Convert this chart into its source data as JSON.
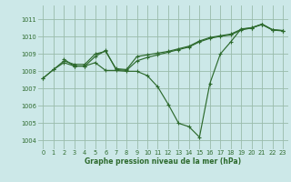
{
  "title": "Graphe pression niveau de la mer (hPa)",
  "bg_color": "#cce8e8",
  "grid_color": "#99bbaa",
  "line_color": "#2d6a2d",
  "xlim": [
    -0.5,
    23.5
  ],
  "ylim": [
    1003.5,
    1011.8
  ],
  "yticks": [
    1004,
    1005,
    1006,
    1007,
    1008,
    1009,
    1010,
    1011
  ],
  "xticks": [
    0,
    1,
    2,
    3,
    4,
    5,
    6,
    7,
    8,
    9,
    10,
    11,
    12,
    13,
    14,
    15,
    16,
    17,
    18,
    19,
    20,
    21,
    22,
    23
  ],
  "series": [
    {
      "x": [
        0,
        1,
        2,
        3,
        4,
        5,
        6,
        7,
        8,
        9,
        10,
        11,
        12,
        13,
        14,
        15,
        16,
        17,
        18,
        19,
        20,
        21,
        22,
        23
      ],
      "y": [
        1007.6,
        1008.1,
        1008.5,
        1008.3,
        1008.3,
        1008.5,
        1008.05,
        1008.05,
        1008.0,
        1008.0,
        1007.75,
        1007.1,
        1006.1,
        1005.0,
        1004.8,
        1004.2,
        1007.3,
        1009.0,
        1009.7,
        1010.45,
        1010.5,
        1010.72,
        1010.4,
        1010.35
      ]
    },
    {
      "x": [
        0,
        1,
        2,
        3,
        4,
        5,
        6,
        7,
        8,
        9,
        10,
        11,
        12,
        13,
        14,
        15,
        16,
        17,
        18,
        19,
        20,
        21,
        22,
        23
      ],
      "y": [
        1007.6,
        1008.1,
        1008.6,
        1008.4,
        1008.4,
        1009.0,
        1009.15,
        1008.15,
        1008.1,
        1008.85,
        1008.95,
        1009.05,
        1009.15,
        1009.3,
        1009.45,
        1009.75,
        1009.95,
        1010.05,
        1010.15,
        1010.42,
        1010.52,
        1010.72,
        1010.4,
        1010.35
      ]
    },
    {
      "x": [
        2,
        3,
        4,
        5,
        6,
        7,
        8,
        9,
        10,
        11,
        12,
        13,
        14,
        15,
        16,
        17,
        18,
        19,
        20,
        21,
        22,
        23
      ],
      "y": [
        1008.7,
        1008.3,
        1008.3,
        1008.85,
        1009.2,
        1008.1,
        1008.05,
        1008.6,
        1008.8,
        1008.95,
        1009.1,
        1009.25,
        1009.4,
        1009.7,
        1009.9,
        1010.02,
        1010.1,
        1010.38,
        1010.5,
        1010.7,
        1010.38,
        1010.33
      ]
    }
  ]
}
